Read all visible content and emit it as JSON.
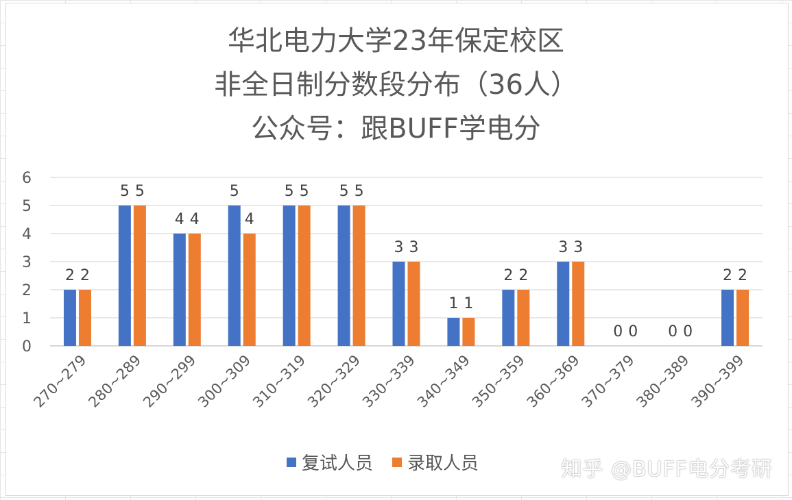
{
  "chart_data": {
    "type": "bar",
    "title_lines": [
      "华北电力大学23年保定校区",
      "非全日制分数段分布（36人）",
      "公众号：跟BUFF学电分"
    ],
    "categories": [
      "270~279",
      "280~289",
      "290~299",
      "300~309",
      "310~319",
      "320~329",
      "330~339",
      "340~349",
      "350~359",
      "360~369",
      "370~379",
      "380~389",
      "390~399"
    ],
    "series": [
      {
        "name": "复试人员",
        "color": "#4472c4",
        "values": [
          2,
          5,
          4,
          5,
          5,
          5,
          3,
          1,
          2,
          3,
          0,
          0,
          2
        ]
      },
      {
        "name": "录取人员",
        "color": "#ed7d31",
        "values": [
          2,
          5,
          4,
          4,
          5,
          5,
          3,
          1,
          2,
          3,
          0,
          0,
          2
        ]
      }
    ],
    "y_ticks": [
      "0",
      "1",
      "2",
      "3",
      "4",
      "5",
      "6"
    ],
    "ylim": [
      0,
      6
    ],
    "grid": true,
    "legend_position": "bottom",
    "data_labels": true
  },
  "watermark": "知乎 @BUFF电分考研"
}
